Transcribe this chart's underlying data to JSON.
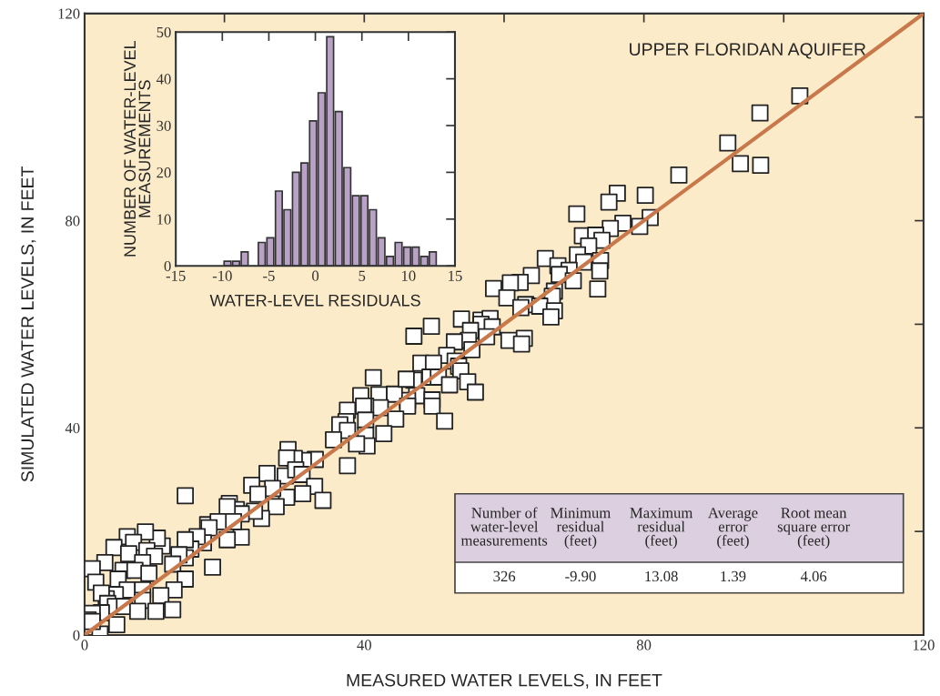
{
  "chart_data": [
    {
      "type": "scatter",
      "title": "UPPER FLORIDAN AQUIFER",
      "xlabel": "MEASURED WATER LEVELS, IN FEET",
      "ylabel": "SIMULATED WATER LEVELS, IN FEET",
      "xlim": [
        0,
        120
      ],
      "ylim": [
        0,
        120
      ],
      "xticks": [
        0,
        {
          "value": 20,
          "label": null
        },
        40,
        {
          "value": 60,
          "label": null
        },
        80,
        {
          "value": 100,
          "label": null
        },
        120
      ],
      "yticks": [
        0,
        {
          "value": 20,
          "label": null
        },
        40,
        {
          "value": 60,
          "label": null
        },
        80,
        {
          "value": 100,
          "label": null
        },
        120
      ],
      "grid": false,
      "legend": false,
      "series": [
        {
          "type": "scatter",
          "marker": "square",
          "color": "#ffffff",
          "x": [
            102.3,
            96.6,
            92.0,
            93.8,
            96.7,
            85.0,
            80.2,
            76.2,
            75.0,
            70.4,
            80.9,
            79.4,
            77.0,
            75.2,
            71.2,
            73.1,
            74.0,
            72.1,
            70.5,
            65.9,
            73.8,
            71.4,
            67.7,
            69.3,
            73.7,
            67.9,
            69.9,
            63.9,
            73.4,
            67.2,
            62.3,
            60.9,
            58.5,
            60.4,
            66.9,
            63.1,
            62.4,
            65.1,
            67.2,
            66.7,
            53.9,
            56.7,
            58.0,
            56.7,
            58.3,
            49.6,
            47.1,
            55.2,
            57.5,
            54.9,
            52.9,
            55.4,
            60.7,
            62.9,
            62.5,
            51.8,
            53.0,
            53.5,
            53.8,
            54.8,
            55.9,
            48.1,
            49.9,
            49.4,
            50.6,
            47.1,
            52.2,
            41.3,
            47.5,
            49.7,
            46.2,
            44.3,
            42.1,
            42.3,
            46.2,
            49.7,
            44.5,
            51.5,
            40.2,
            39.5,
            39.9,
            37.6,
            46.0,
            40.2,
            37.4,
            36.5,
            37.6,
            40.2,
            42.8,
            40.4,
            35.6,
            37.6,
            38.9,
            29.1,
            33.0,
            31.3,
            30.0,
            28.9,
            26.1,
            23.9,
            28.7,
            30.2,
            31.1,
            32.9,
            31.2,
            34.1,
            28.9,
            27.4,
            25.3,
            24.3,
            26.9,
            24.8,
            14.4,
            20.7,
            21.7,
            22.4,
            17.6,
            22.4,
            20.4,
            20.4,
            21.3,
            19.1,
            17.8,
            17.0,
            16.1,
            15.2,
            14.4,
            14.4,
            13.5,
            12.6,
            18.3,
            14.4,
            12.8,
            11.1,
            10.4,
            8.7,
            6.1,
            7.0,
            4.2,
            2.9,
            1.1,
            6.3,
            8.9,
            10.0,
            8.3,
            5.5,
            7.2,
            9.2,
            4.8,
            1.6,
            6.1,
            8.3,
            10.9,
            4.4,
            3.1,
            2.4,
            3.3,
            4.4,
            5.7,
            8.3,
            7.6,
            10.2,
            12.6,
            2.4,
            1.1,
            0.5,
            4.6,
            2.2,
            1.1
          ],
          "values": [
            104.1,
            100.8,
            95.0,
            91.0,
            90.7,
            88.8,
            84.9,
            85.3,
            83.6,
            81.3,
            80.6,
            78.9,
            79.5,
            78.5,
            77.1,
            77.2,
            76.2,
            75.1,
            73.4,
            72.7,
            72.3,
            72.0,
            71.3,
            70.4,
            70.3,
            69.6,
            68.4,
            69.4,
            66.8,
            66.4,
            68.1,
            68.0,
            66.9,
            65.1,
            65.4,
            63.8,
            63.2,
            63.5,
            62.6,
            61.4,
            61.0,
            60.8,
            61.1,
            60.0,
            59.5,
            59.6,
            57.7,
            58.8,
            57.6,
            56.9,
            56.6,
            55.1,
            56.9,
            57.3,
            56.2,
            54.0,
            52.9,
            51.9,
            51.0,
            48.9,
            46.9,
            52.5,
            52.5,
            49.8,
            49.8,
            49.2,
            48.3,
            49.7,
            46.2,
            45.4,
            45.3,
            46.5,
            46.4,
            43.9,
            44.2,
            44.2,
            41.7,
            41.3,
            44.2,
            46.2,
            44.2,
            43.4,
            49.4,
            41.5,
            41.2,
            40.6,
            39.5,
            38.6,
            38.9,
            36.5,
            37.7,
            32.7,
            36.9,
            35.8,
            33.9,
            33.7,
            34.1,
            34.2,
            31.2,
            28.9,
            30.7,
            31.9,
            31.0,
            28.7,
            27.3,
            26.0,
            26.6,
            24.8,
            22.5,
            23.9,
            28.3,
            27.2,
            26.9,
            25.4,
            24.2,
            23.4,
            21.3,
            18.9,
            18.4,
            24.8,
            21.9,
            21.9,
            20.7,
            17.8,
            19.0,
            16.6,
            18.4,
            14.9,
            15.5,
            13.7,
            13.1,
            10.8,
            8.7,
            17.2,
            18.7,
            19.9,
            19.0,
            17.9,
            16.9,
            14.0,
            12.8,
            15.7,
            16.3,
            15.2,
            14.0,
            12.5,
            12.5,
            11.9,
            10.8,
            10.2,
            8.7,
            8.7,
            7.6,
            7.8,
            7.0,
            8.1,
            6.1,
            5.5,
            5.5,
            6.7,
            4.6,
            4.6,
            4.9,
            4.3,
            4.2,
            2.9,
            2.0,
            0.2,
            2.6
          ]
        },
        {
          "type": "line",
          "color": "#c8784a",
          "x": [
            0,
            120
          ],
          "values": [
            0,
            120
          ]
        }
      ]
    },
    {
      "type": "histogram",
      "xlabel": "WATER-LEVEL RESIDUALS",
      "ylabel": "NUMBER OF WATER-LEVEL\nMEASUREMENTS",
      "color": "#b9a2c6",
      "bins": [
        -9.9,
        -8.98,
        -8.06,
        -7.14,
        -6.22,
        -5.3,
        -4.38,
        -3.47,
        -2.55,
        -1.63,
        -0.71,
        0.21,
        1.13,
        2.05,
        2.97,
        3.89,
        4.81,
        5.73,
        6.65,
        7.56,
        8.48,
        9.4,
        10.32,
        11.24,
        12.16,
        13.08
      ],
      "values": [
        1,
        1,
        3,
        0,
        5,
        6,
        16,
        12,
        20,
        22,
        31,
        37,
        49,
        33,
        21,
        15,
        15,
        12,
        6,
        2,
        5,
        4,
        4,
        2,
        3
      ],
      "xlim": [
        -15,
        15
      ],
      "xticks": [
        -15,
        -10,
        -5,
        0,
        5,
        10,
        15
      ],
      "ylim": [
        0,
        50
      ],
      "yticks": [
        0,
        10,
        20,
        30,
        40,
        50
      ],
      "grid": false
    },
    {
      "type": "other",
      "annotations": [
        "Number of\nwater-level\nmeasurements",
        "Minimum\nresidual\n(feet)",
        "Maximum\nresidual\n(feet)",
        "Average\nerror\n(feet)",
        "Root mean\nsquare error\n(feet)",
        "326",
        "-9.90",
        "13.08",
        "1.39",
        "4.06"
      ]
    }
  ]
}
